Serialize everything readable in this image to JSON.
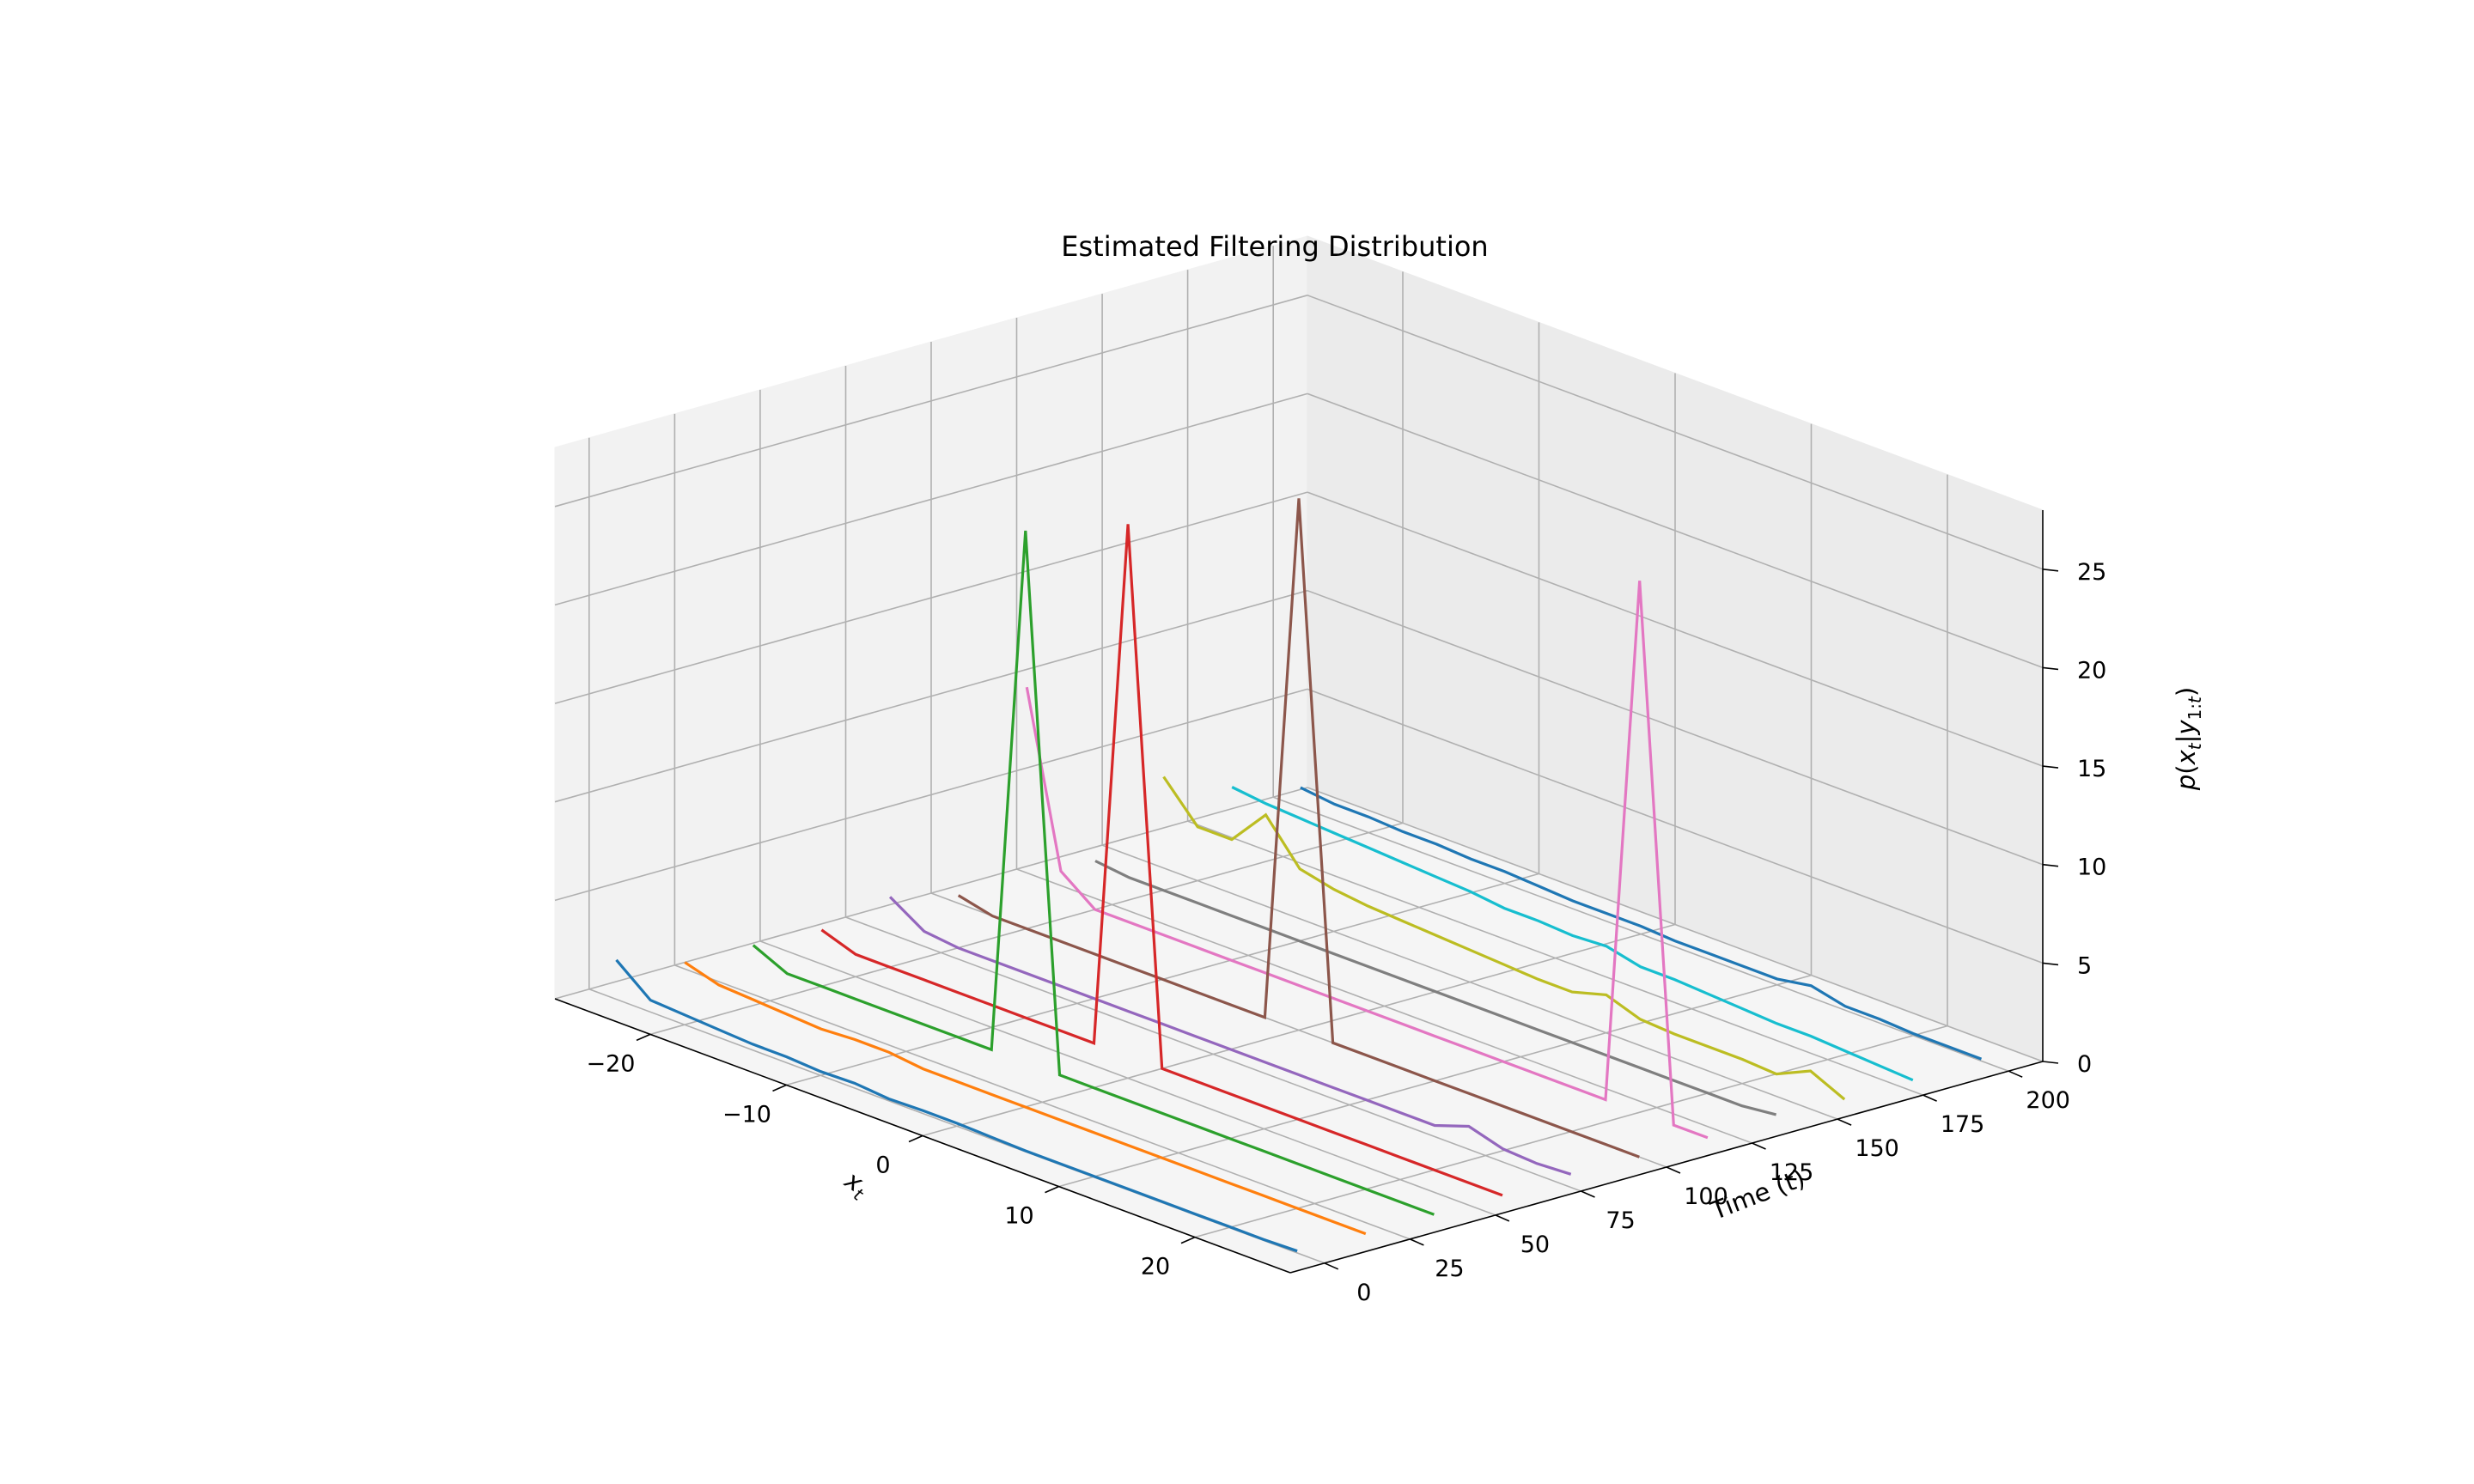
{
  "chart_data": {
    "type": "line",
    "projection": "3d",
    "title": "Estimated Filtering Distribution",
    "xlabel": "x_t",
    "ylabel": "Time (t)",
    "zlabel": "p(x_t|y_1:t)",
    "xlim": [
      -27,
      27
    ],
    "ylim": [
      -10,
      210
    ],
    "zlim": [
      0,
      28
    ],
    "x_ticks": [
      "−20",
      "−10",
      "0",
      "10",
      "20"
    ],
    "y_ticks": [
      "0",
      "25",
      "50",
      "75",
      "100",
      "125",
      "150",
      "175",
      "200"
    ],
    "z_ticks": [
      "0",
      "5",
      "10",
      "15",
      "20",
      "25"
    ],
    "grid": true,
    "x_grid": [
      -25,
      -22.5,
      -20,
      -17.5,
      -15,
      -12.5,
      -10,
      -7.5,
      -5,
      -2.5,
      0,
      2.5,
      5,
      7.5,
      10,
      12.5,
      15,
      17.5,
      20,
      22.5,
      25
    ],
    "series": [
      {
        "time": 0,
        "color": "#1f77b4",
        "values": [
          2.0,
          0.6,
          0.5,
          0.4,
          0.3,
          0.3,
          0.2,
          0.25,
          0.1,
          0.15,
          0.15,
          0.1,
          0.05,
          0.05,
          0.05,
          0.05,
          0.05,
          0.05,
          0.05,
          0.05,
          0.1
        ]
      },
      {
        "time": 20,
        "color": "#ff7f0e",
        "values": [
          0.9,
          0.4,
          0.3,
          0.2,
          0.1,
          0.2,
          0.2,
          0.0,
          0.0,
          0.0,
          0.0,
          0.0,
          0.0,
          0.0,
          0.0,
          0.0,
          0.0,
          0.0,
          0.0,
          0.0,
          0.0
        ]
      },
      {
        "time": 40,
        "color": "#2ca02c",
        "values": [
          0.8,
          0.0,
          0.0,
          0.0,
          0.0,
          0.0,
          0.0,
          0.0,
          27.0,
          0.0,
          0.0,
          0.0,
          0.0,
          0.0,
          0.0,
          0.0,
          0.0,
          0.0,
          0.0,
          0.0,
          0.0
        ]
      },
      {
        "time": 60,
        "color": "#d62728",
        "values": [
          0.6,
          0.0,
          0.0,
          0.0,
          0.0,
          0.0,
          0.0,
          0.0,
          0.0,
          27.0,
          0.0,
          0.0,
          0.0,
          0.0,
          0.0,
          0.0,
          0.0,
          0.0,
          0.0,
          0.0,
          0.0
        ]
      },
      {
        "time": 80,
        "color": "#9467bd",
        "values": [
          1.3,
          0.2,
          0.0,
          0.0,
          0.0,
          0.0,
          0.0,
          0.0,
          0.0,
          0.0,
          0.0,
          0.0,
          0.0,
          0.0,
          0.0,
          0.0,
          0.0,
          0.6,
          0.1,
          0.0,
          0.1
        ]
      },
      {
        "time": 100,
        "color": "#8c564b",
        "values": [
          0.4,
          0.0,
          0.0,
          0.0,
          0.0,
          0.0,
          0.0,
          0.0,
          0.0,
          0.0,
          27.0,
          0.0,
          0.0,
          0.0,
          0.0,
          0.0,
          0.0,
          0.0,
          0.0,
          0.0,
          0.0
        ]
      },
      {
        "time": 120,
        "color": "#e377c2",
        "values": [
          10.0,
          1.3,
          0.0,
          0.0,
          0.0,
          0.0,
          0.0,
          0.0,
          0.0,
          0.0,
          0.0,
          0.0,
          0.0,
          0.0,
          0.0,
          0.0,
          0.0,
          0.0,
          27.0,
          0.0,
          0.0
        ]
      },
      {
        "time": 140,
        "color": "#7f7f7f",
        "values": [
          0.2,
          0.0,
          0.0,
          0.0,
          0.0,
          0.0,
          0.0,
          0.0,
          0.0,
          0.0,
          0.0,
          0.0,
          0.0,
          0.0,
          0.0,
          0.0,
          0.0,
          0.0,
          0.0,
          0.0,
          0.2
        ]
      },
      {
        "time": 160,
        "color": "#bcbd22",
        "values": [
          3.5,
          1.6,
          1.6,
          3.5,
          1.4,
          1.0,
          0.8,
          0.7,
          0.6,
          0.5,
          0.4,
          0.3,
          0.3,
          0.8,
          0.2,
          0.1,
          0.1,
          0.1,
          0.0,
          0.8,
          0.0
        ]
      },
      {
        "time": 180,
        "color": "#17becf",
        "values": [
          2.0,
          1.8,
          1.7,
          1.6,
          1.5,
          1.4,
          1.3,
          1.2,
          1.0,
          1.0,
          0.9,
          1.0,
          0.6,
          0.6,
          0.5,
          0.4,
          0.3,
          0.3,
          0.2,
          0.1,
          0.0
        ]
      },
      {
        "time": 200,
        "color": "#1f77b4",
        "values": [
          1.0,
          0.8,
          0.8,
          0.7,
          0.7,
          0.6,
          0.6,
          0.5,
          0.4,
          0.4,
          0.4,
          0.3,
          0.3,
          0.3,
          0.3,
          0.6,
          0.2,
          0.2,
          0.1,
          0.1,
          0.1
        ]
      }
    ]
  }
}
